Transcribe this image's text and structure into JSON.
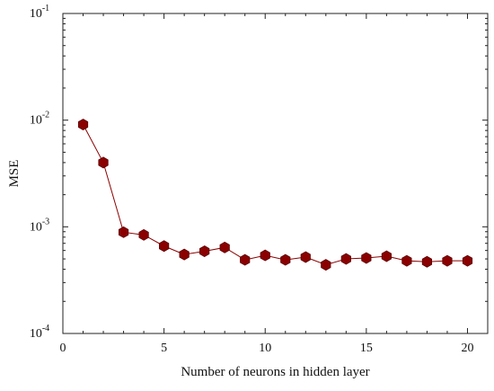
{
  "chart_data": {
    "type": "line",
    "xlabel": "Number of neurons in hidden layer",
    "ylabel": "MSE",
    "xlim": [
      0,
      21
    ],
    "ylim": [
      0.0001,
      0.1
    ],
    "yscale": "log",
    "grid": false,
    "x_ticks": [
      0,
      5,
      10,
      15,
      20
    ],
    "x_tick_labels": [
      "0",
      "5",
      "10",
      "15",
      "20"
    ],
    "y_ticks": [
      0.1,
      0.01,
      0.001,
      0.0001
    ],
    "y_tick_labels": [
      {
        "base": "10",
        "exp": "-1"
      },
      {
        "base": "10",
        "exp": "-2"
      },
      {
        "base": "10",
        "exp": "-3"
      },
      {
        "base": "10",
        "exp": "-4"
      }
    ],
    "series": [
      {
        "color": "#8b0000",
        "marker": "hexagon",
        "x": [
          1,
          2,
          3,
          4,
          5,
          6,
          7,
          8,
          9,
          10,
          11,
          12,
          13,
          14,
          15,
          16,
          17,
          18,
          19,
          20
        ],
        "y": [
          0.0091,
          0.004,
          0.00089,
          0.00084,
          0.00066,
          0.00055,
          0.00059,
          0.00064,
          0.00049,
          0.00054,
          0.00049,
          0.00052,
          0.00044,
          0.0005,
          0.00051,
          0.00053,
          0.00048,
          0.00047,
          0.00048,
          0.00048
        ]
      }
    ]
  }
}
